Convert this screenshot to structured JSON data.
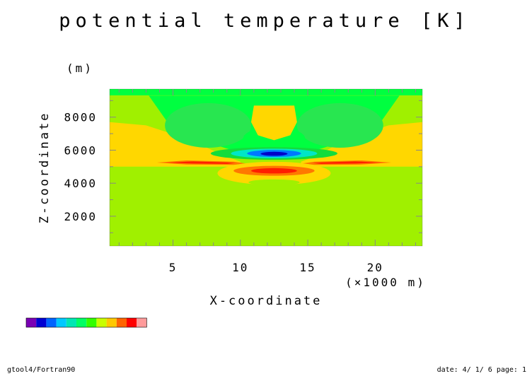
{
  "chart_data": {
    "type": "heatmap",
    "title": "potential temperature [K]",
    "xlabel": "X-coordinate",
    "xunit": "(×1000 m)",
    "ylabel": "Z-coordinate",
    "yunit": "(m)",
    "xlim": [
      0.3,
      23.5
    ],
    "ylim": [
      200,
      9700
    ],
    "xticks": [
      5,
      10,
      15,
      20
    ],
    "xtick_labels": [
      "5",
      "10",
      "15",
      "20"
    ],
    "yticks": [
      2000,
      4000,
      6000,
      8000
    ],
    "ytick_labels": [
      "2000",
      "4000",
      "6000",
      "8000"
    ],
    "colorbar_colors": [
      "#7a00b4",
      "#0000d2",
      "#0064ff",
      "#00c8ff",
      "#00e6b4",
      "#00ff64",
      "#32ff00",
      "#c8ff00",
      "#ffc800",
      "#ff6400",
      "#ff0000",
      "#ff9b9b"
    ],
    "field_colors": {
      "base": "#a0f000",
      "warm": "#ffd700",
      "green": "#00ff40",
      "mid_green": "#28e650",
      "dark_green": "#14dc3c",
      "cyan": "#00e6c8",
      "blue": "#0078ff",
      "deep_blue": "#0000c8",
      "orange": "#ff7800",
      "red": "#ff1e00"
    },
    "regions": [
      {
        "name": "top-band",
        "color": "green",
        "x": [
          0.3,
          23.5
        ],
        "z": [
          9300,
          9700
        ]
      },
      {
        "name": "left-warm-wedge",
        "color": "warm",
        "x": [
          0.3,
          9
        ],
        "z": [
          5000,
          7600
        ]
      },
      {
        "name": "right-warm-wedge",
        "color": "warm",
        "x": [
          15.5,
          23.5
        ],
        "z": [
          5000,
          7600
        ]
      },
      {
        "name": "central-warm-bubble",
        "color": "warm",
        "x": [
          11,
          14
        ],
        "z": [
          6500,
          8700
        ]
      },
      {
        "name": "lower-warm-lens",
        "color": "warm",
        "x": [
          8.5,
          16.5
        ],
        "z": [
          3700,
          5400
        ]
      },
      {
        "name": "left-green-lobe",
        "color": "mid_green",
        "x": [
          4,
          11
        ],
        "z": [
          6000,
          9000
        ]
      },
      {
        "name": "right-green-lobe",
        "color": "mid_green",
        "x": [
          14,
          21
        ],
        "z": [
          6000,
          9000
        ]
      },
      {
        "name": "cold-core",
        "color": "deep_blue",
        "x": [
          11.8,
          13.2
        ],
        "z": [
          5700,
          5900
        ]
      },
      {
        "name": "left-red-streak",
        "color": "red",
        "x": [
          4.5,
          9.5
        ],
        "z": [
          5150,
          5350
        ]
      },
      {
        "name": "right-red-streak",
        "color": "red",
        "x": [
          16,
          21
        ],
        "z": [
          5150,
          5350
        ]
      },
      {
        "name": "warm-core",
        "color": "red",
        "x": [
          11,
          14
        ],
        "z": [
          4600,
          4900
        ]
      }
    ]
  },
  "footer": {
    "left": "gtool4/Fortran90",
    "right": "date: 4/ 1/ 6 page: 1"
  }
}
